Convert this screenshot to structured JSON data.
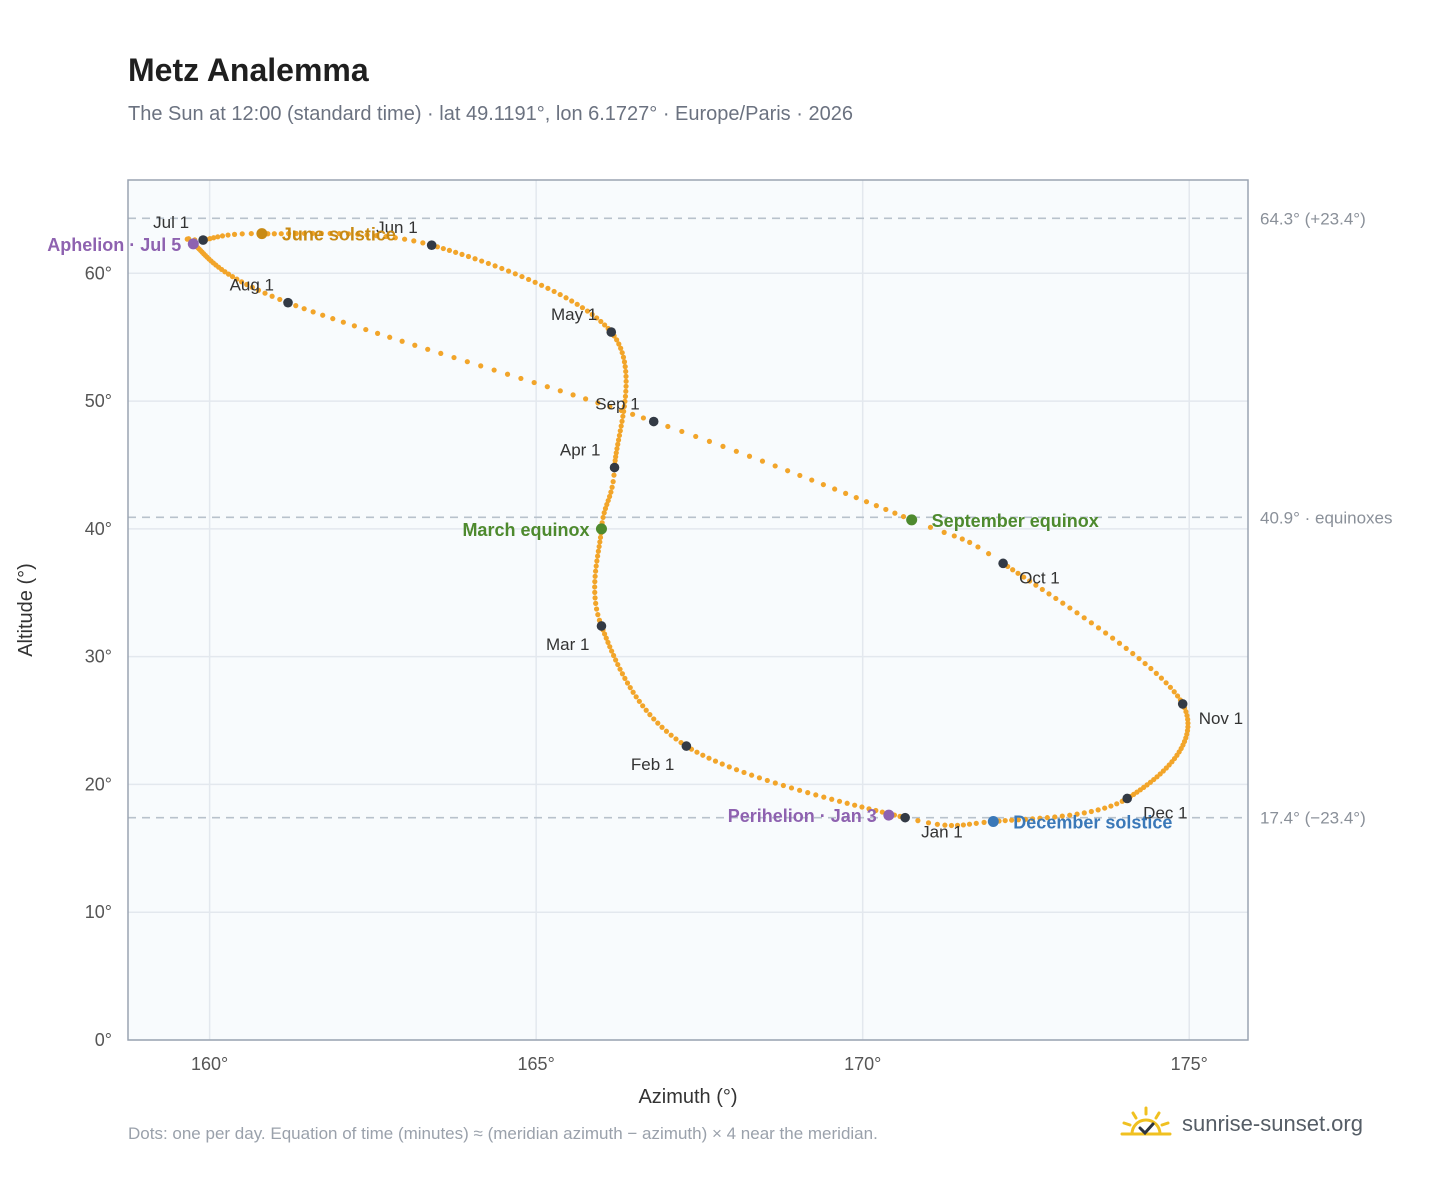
{
  "title": "Metz Analemma",
  "subtitle": "The Sun at 12:00 (standard time) · lat 49.1191°, lon 6.1727° · Europe/Paris · 2026",
  "footnote": "Dots: one per day. Equation of time (minutes) ≈ (meridian azimuth − azimuth) × 4 near the meridian.",
  "brand": {
    "name": "sunrise-sunset.org",
    "logo_icon": "sun-check-icon"
  },
  "colors": {
    "curve": "#f2a52a",
    "month_marker": "#333a45",
    "equinox": "#4e8a2e",
    "june_solstice": "#c88a14",
    "december_solstice": "#3a78b8",
    "aphelion_perihelion": "#8e62b0",
    "plot_background": "#f8fbfd",
    "grid": "#e3e8ee",
    "reference_line": "#b8c2cc"
  },
  "chart_data": {
    "type": "scatter",
    "title": "Metz Analemma",
    "xlabel": "Azimuth (°)",
    "ylabel": "Altitude (°)",
    "xlim": [
      158.75,
      175.9
    ],
    "ylim": [
      0,
      67.3
    ],
    "xticks": [
      160,
      165,
      170,
      175
    ],
    "xtick_labels": [
      "160°",
      "165°",
      "170°",
      "175°"
    ],
    "yticks": [
      0,
      10,
      20,
      30,
      40,
      50,
      60
    ],
    "ytick_labels": [
      "0°",
      "10°",
      "20°",
      "30°",
      "40°",
      "50°",
      "60°"
    ],
    "grid": true,
    "series": [
      {
        "name": "",
        "note": "one dot per day",
        "path_keypoints": [
          {
            "doy": 0,
            "az": 170.65,
            "alt": 17.4
          },
          {
            "doy": 31,
            "az": 167.3,
            "alt": 23.0
          },
          {
            "doy": 59,
            "az": 166.0,
            "alt": 32.4
          },
          {
            "doy": 78,
            "az": 166.0,
            "alt": 40.0
          },
          {
            "doy": 90,
            "az": 166.2,
            "alt": 44.8
          },
          {
            "doy": 120,
            "az": 166.15,
            "alt": 55.4
          },
          {
            "doy": 151,
            "az": 163.4,
            "alt": 62.2
          },
          {
            "doy": 171,
            "az": 160.8,
            "alt": 63.1
          },
          {
            "doy": 181,
            "az": 159.9,
            "alt": 62.6
          },
          {
            "doy": 185,
            "az": 159.75,
            "alt": 62.3
          },
          {
            "doy": 212,
            "az": 161.2,
            "alt": 57.7
          },
          {
            "doy": 243,
            "az": 166.8,
            "alt": 48.4
          },
          {
            "doy": 265,
            "az": 170.75,
            "alt": 40.7
          },
          {
            "doy": 273,
            "az": 172.15,
            "alt": 37.3
          },
          {
            "doy": 304,
            "az": 174.9,
            "alt": 26.3
          },
          {
            "doy": 334,
            "az": 174.05,
            "alt": 18.9
          },
          {
            "doy": 354,
            "az": 172.0,
            "alt": 17.1
          },
          {
            "doy": 365,
            "az": 170.65,
            "alt": 17.4
          }
        ]
      }
    ],
    "month_markers": [
      {
        "label": "Jan 1",
        "az": 170.65,
        "alt": 17.4,
        "label_pos": "below-right"
      },
      {
        "label": "Feb 1",
        "az": 167.3,
        "alt": 23.0,
        "label_pos": "below-left"
      },
      {
        "label": "Mar 1",
        "az": 166.0,
        "alt": 32.4,
        "label_pos": "below-left"
      },
      {
        "label": "Apr 1",
        "az": 166.2,
        "alt": 44.8,
        "label_pos": "above-left"
      },
      {
        "label": "May 1",
        "az": 166.15,
        "alt": 55.4,
        "label_pos": "above-left"
      },
      {
        "label": "Jun 1",
        "az": 163.4,
        "alt": 62.2,
        "label_pos": "above-left"
      },
      {
        "label": "Jul 1",
        "az": 159.9,
        "alt": 62.6,
        "label_pos": "above-left"
      },
      {
        "label": "Aug 1",
        "az": 161.2,
        "alt": 57.7,
        "label_pos": "above-left"
      },
      {
        "label": "Sep 1",
        "az": 166.8,
        "alt": 48.4,
        "label_pos": "above-left"
      },
      {
        "label": "Oct 1",
        "az": 172.15,
        "alt": 37.3,
        "label_pos": "below-right"
      },
      {
        "label": "Nov 1",
        "az": 174.9,
        "alt": 26.3,
        "label_pos": "below-right"
      },
      {
        "label": "Dec 1",
        "az": 174.05,
        "alt": 18.9,
        "label_pos": "below-right"
      }
    ],
    "events": [
      {
        "label": "March equinox",
        "az": 166.0,
        "alt": 40.0,
        "color": "#4e8a2e",
        "label_side": "left"
      },
      {
        "label": "September equinox",
        "az": 170.75,
        "alt": 40.7,
        "color": "#4e8a2e",
        "label_side": "right"
      },
      {
        "label": "June solstice",
        "az": 160.8,
        "alt": 63.1,
        "color": "#c88a14",
        "label_side": "right"
      },
      {
        "label": "December solstice",
        "az": 172.0,
        "alt": 17.1,
        "color": "#3a78b8",
        "label_side": "right"
      },
      {
        "label": "Aphelion · Jul 5",
        "az": 159.75,
        "alt": 62.3,
        "color": "#8e62b0",
        "label_side": "left"
      },
      {
        "label": "Perihelion · Jan 3",
        "az": 170.4,
        "alt": 17.6,
        "color": "#8e62b0",
        "label_side": "left"
      }
    ],
    "reference_lines": [
      {
        "alt": 64.3,
        "label": "64.3° (+23.4°)"
      },
      {
        "alt": 40.9,
        "label": "40.9° · equinoxes"
      },
      {
        "alt": 17.4,
        "label": "17.4° (−23.4°)"
      }
    ]
  }
}
